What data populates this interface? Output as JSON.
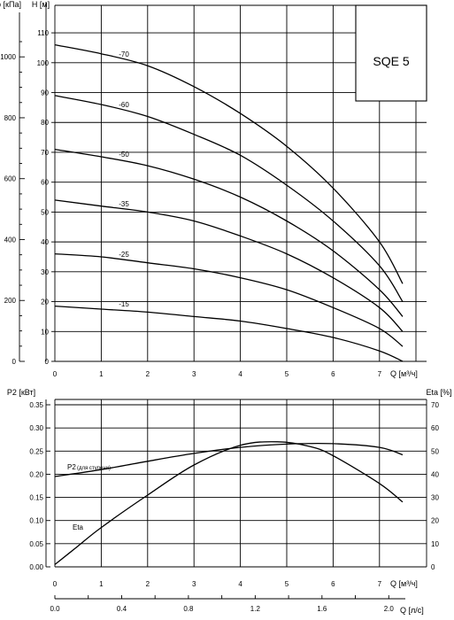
{
  "chart_data": [
    {
      "type": "line",
      "model": "SQE 5",
      "xlabel": "Q [м³/ч]",
      "ylabel": "H [м]",
      "ylabel_secondary": "p [кПа]",
      "xlim": [
        0,
        8
      ],
      "ylim": [
        0,
        110
      ],
      "ylim_secondary": [
        0,
        1080
      ],
      "x_ticks": [
        "0",
        "1",
        "2",
        "3",
        "4",
        "5",
        "6",
        "7"
      ],
      "y_ticks": [
        "0",
        "10",
        "20",
        "30",
        "40",
        "50",
        "60",
        "70",
        "80",
        "90",
        "100",
        "110"
      ],
      "y_ticks_secondary": [
        "0",
        "200",
        "400",
        "600",
        "800",
        "1000"
      ],
      "grid": true,
      "series": [
        {
          "name": "-70",
          "x": [
            0,
            1,
            2,
            3,
            4,
            5,
            6,
            7,
            7.5
          ],
          "y": [
            106,
            103,
            99,
            92,
            83,
            72,
            58,
            40,
            26
          ]
        },
        {
          "name": "-60",
          "x": [
            0,
            1,
            2,
            3,
            4,
            5,
            6,
            7,
            7.5
          ],
          "y": [
            89,
            86,
            82,
            76,
            69,
            59,
            47,
            32,
            20
          ]
        },
        {
          "name": "-50",
          "x": [
            0,
            1,
            2,
            3,
            4,
            5,
            6,
            7,
            7.5
          ],
          "y": [
            71,
            68.5,
            65.5,
            61,
            55,
            47,
            37,
            24,
            15
          ]
        },
        {
          "name": "-35",
          "x": [
            0,
            1,
            2,
            3,
            4,
            5,
            6,
            7,
            7.5
          ],
          "y": [
            54,
            52,
            50,
            47,
            42,
            36,
            28,
            18,
            10
          ]
        },
        {
          "name": "-25",
          "x": [
            0,
            1,
            2,
            3,
            4,
            5,
            6,
            7,
            7.5
          ],
          "y": [
            36,
            35,
            33,
            31,
            28,
            24,
            18,
            11,
            5
          ]
        },
        {
          "name": "-15",
          "x": [
            0,
            1,
            2,
            3,
            4,
            5,
            6,
            7,
            7.5
          ],
          "y": [
            18.5,
            17.5,
            16.5,
            15,
            13.5,
            11,
            8,
            3.5,
            0
          ]
        }
      ]
    },
    {
      "type": "line",
      "xlabel": "Q [м³/ч]",
      "xlabel_secondary": "Q [л/с]",
      "ylabel": "P2 [кВт]",
      "ylabel_secondary": "Eta [%]",
      "xlim": [
        0,
        8
      ],
      "ylim": [
        0,
        0.35
      ],
      "ylim_secondary": [
        0,
        70
      ],
      "x_ticks": [
        "0",
        "1",
        "2",
        "3",
        "4",
        "5",
        "6",
        "7"
      ],
      "x_ticks_secondary": [
        "0.0",
        "0.4",
        "0.8",
        "1.2",
        "1.6",
        "2.0"
      ],
      "y_ticks": [
        "0.00",
        "0.05",
        "0.10",
        "0.15",
        "0.20",
        "0.25",
        "0.30",
        "0.35"
      ],
      "y_ticks_secondary": [
        "0",
        "10",
        "20",
        "30",
        "40",
        "50",
        "60",
        "70"
      ],
      "grid": true,
      "series": [
        {
          "name": "P2",
          "note": "(для ступени)",
          "axis": "left",
          "x": [
            0,
            1,
            2,
            3,
            4,
            5,
            6,
            7,
            7.5
          ],
          "y": [
            0.195,
            0.21,
            0.228,
            0.245,
            0.258,
            0.265,
            0.266,
            0.258,
            0.242
          ]
        },
        {
          "name": "Eta",
          "axis": "right",
          "x": [
            0,
            0.5,
            1,
            2,
            3,
            4,
            4.8,
            5.5,
            6,
            7,
            7.5
          ],
          "y": [
            1,
            9,
            17,
            31,
            44,
            52.5,
            54,
            52,
            48,
            36,
            28
          ]
        }
      ]
    }
  ]
}
